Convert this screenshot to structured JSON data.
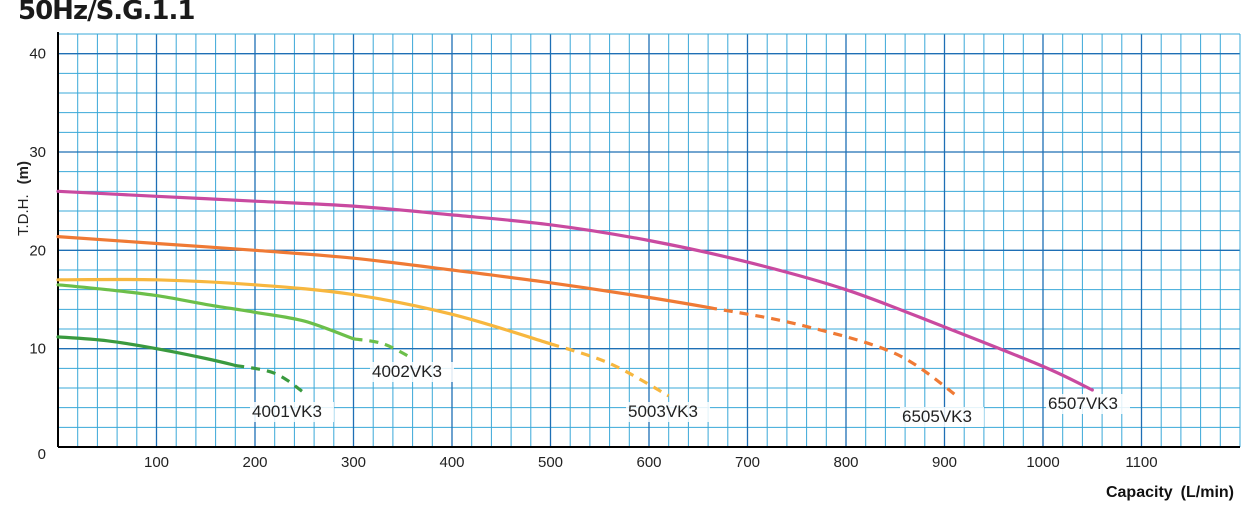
{
  "chart_data": {
    "type": "line",
    "title": "50Hz/S.G.1.1",
    "xlabel": "Capacity",
    "xunit": "(L/min)",
    "ylabel": "T.D.H.",
    "yunit": "(m)",
    "xlim": [
      0,
      1200
    ],
    "ylim": [
      0,
      42
    ],
    "grid": true,
    "x_ticks": [
      100,
      200,
      300,
      400,
      500,
      600,
      700,
      800,
      900,
      1000,
      1100
    ],
    "y_ticks": [
      0,
      10,
      20,
      30,
      40
    ],
    "series": [
      {
        "name": "4001VK3",
        "color": "#3a9a3f",
        "solid": [
          [
            0,
            11.2
          ],
          [
            50,
            10.8
          ],
          [
            100,
            10.0
          ],
          [
            150,
            9.0
          ],
          [
            180,
            8.3
          ]
        ],
        "dashed": [
          [
            180,
            8.3
          ],
          [
            220,
            7.5
          ],
          [
            250,
            5.5
          ]
        ]
      },
      {
        "name": "4002VK3",
        "color": "#6cbf4a",
        "solid": [
          [
            0,
            16.5
          ],
          [
            50,
            16.0
          ],
          [
            100,
            15.4
          ],
          [
            150,
            14.5
          ],
          [
            200,
            13.7
          ],
          [
            250,
            12.8
          ],
          [
            300,
            11.0
          ]
        ],
        "dashed": [
          [
            300,
            11.0
          ],
          [
            330,
            10.5
          ],
          [
            360,
            9.0
          ]
        ]
      },
      {
        "name": "5003VK3",
        "color": "#f7b73f",
        "solid": [
          [
            0,
            17.0
          ],
          [
            100,
            17.0
          ],
          [
            200,
            16.5
          ],
          [
            300,
            15.5
          ],
          [
            400,
            13.5
          ],
          [
            500,
            10.5
          ]
        ],
        "dashed": [
          [
            500,
            10.5
          ],
          [
            560,
            8.5
          ],
          [
            620,
            5.2
          ]
        ]
      },
      {
        "name": "6505VK3",
        "color": "#ef7a35",
        "solid": [
          [
            0,
            21.4
          ],
          [
            100,
            20.7
          ],
          [
            200,
            20.0
          ],
          [
            300,
            19.2
          ],
          [
            400,
            18.0
          ],
          [
            500,
            16.7
          ],
          [
            600,
            15.2
          ],
          [
            660,
            14.2
          ]
        ],
        "dashed": [
          [
            660,
            14.2
          ],
          [
            750,
            12.5
          ],
          [
            850,
            9.5
          ],
          [
            915,
            5.0
          ]
        ]
      },
      {
        "name": "6507VK3",
        "color": "#c94aa0",
        "solid": [
          [
            0,
            26.0
          ],
          [
            100,
            25.5
          ],
          [
            200,
            25.0
          ],
          [
            300,
            24.5
          ],
          [
            400,
            23.6
          ],
          [
            500,
            22.6
          ],
          [
            600,
            21.0
          ],
          [
            700,
            18.8
          ],
          [
            800,
            16.0
          ],
          [
            900,
            12.2
          ],
          [
            1000,
            8.2
          ],
          [
            1050,
            5.8
          ]
        ]
      }
    ]
  }
}
